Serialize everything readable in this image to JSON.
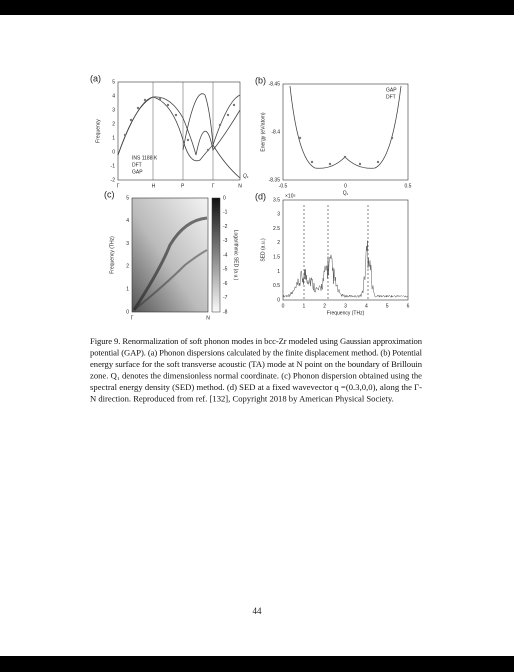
{
  "figure": {
    "panels": [
      {
        "label": "(a)",
        "ylabel": "Frequency",
        "yticks": [
          "-2",
          "-1",
          "0",
          "1",
          "2",
          "3",
          "4",
          "5"
        ],
        "xticks": [
          "Γ",
          "H",
          "P",
          "Γ",
          "N"
        ],
        "legend": [
          "INS 1188 K",
          "DFT",
          "GAP"
        ],
        "annotation": "Q₁"
      },
      {
        "label": "(b)",
        "ylabel": "Energy (eV/atom)",
        "yticks": [
          "-8.35",
          "-8.4",
          "-8.45"
        ],
        "xticks": [
          "-0.5",
          "0",
          "0.5"
        ],
        "xlabel": "Q₁",
        "legend": [
          "GAP",
          "DFT"
        ]
      },
      {
        "label": "(c)",
        "ylabel": "Frequency (THz)",
        "yticks": [
          "0",
          "1",
          "2",
          "3",
          "4",
          "5"
        ],
        "xticks": [
          "Γ",
          "N"
        ],
        "colorbar_label": "Logarithmic SED (a.u.)",
        "colorbar_ticks": [
          "0",
          "-1",
          "-2",
          "-3",
          "-4",
          "-5",
          "-6",
          "-7",
          "-8"
        ]
      },
      {
        "label": "(d)",
        "ylabel": "SED (a.u.)",
        "exponent": "×10⁵",
        "yticks": [
          "0",
          "0.5",
          "1",
          "1.5",
          "2",
          "2.5",
          "3",
          "3.5"
        ],
        "xticks": [
          "0",
          "1",
          "2",
          "3",
          "4",
          "5",
          "6"
        ],
        "xlabel": "Frequency (THz)"
      }
    ]
  },
  "caption": [
    "Figure 9. Renormalization of soft phonon modes in bcc-Zr modeled using Gaussian approximation",
    "potential (GAP). (a) Phonon dispersions calculated by the finite displacement method. (b) Potential",
    "energy surface for the soft transverse acoustic (TA) mode at N point on the boundary of Brillouin",
    "zone. Q₁ denotes the dimensionless normal coordinate. (c) Phonon dispersion obtained using the",
    "spectral energy density (SED) method. (d) SED at a fixed wavevector q =(0.3,0,0), along the Γ-",
    "N direction. Reproduced from ref. [132], Copyright 2018 by American Physical Society."
  ],
  "page_number": "44"
}
